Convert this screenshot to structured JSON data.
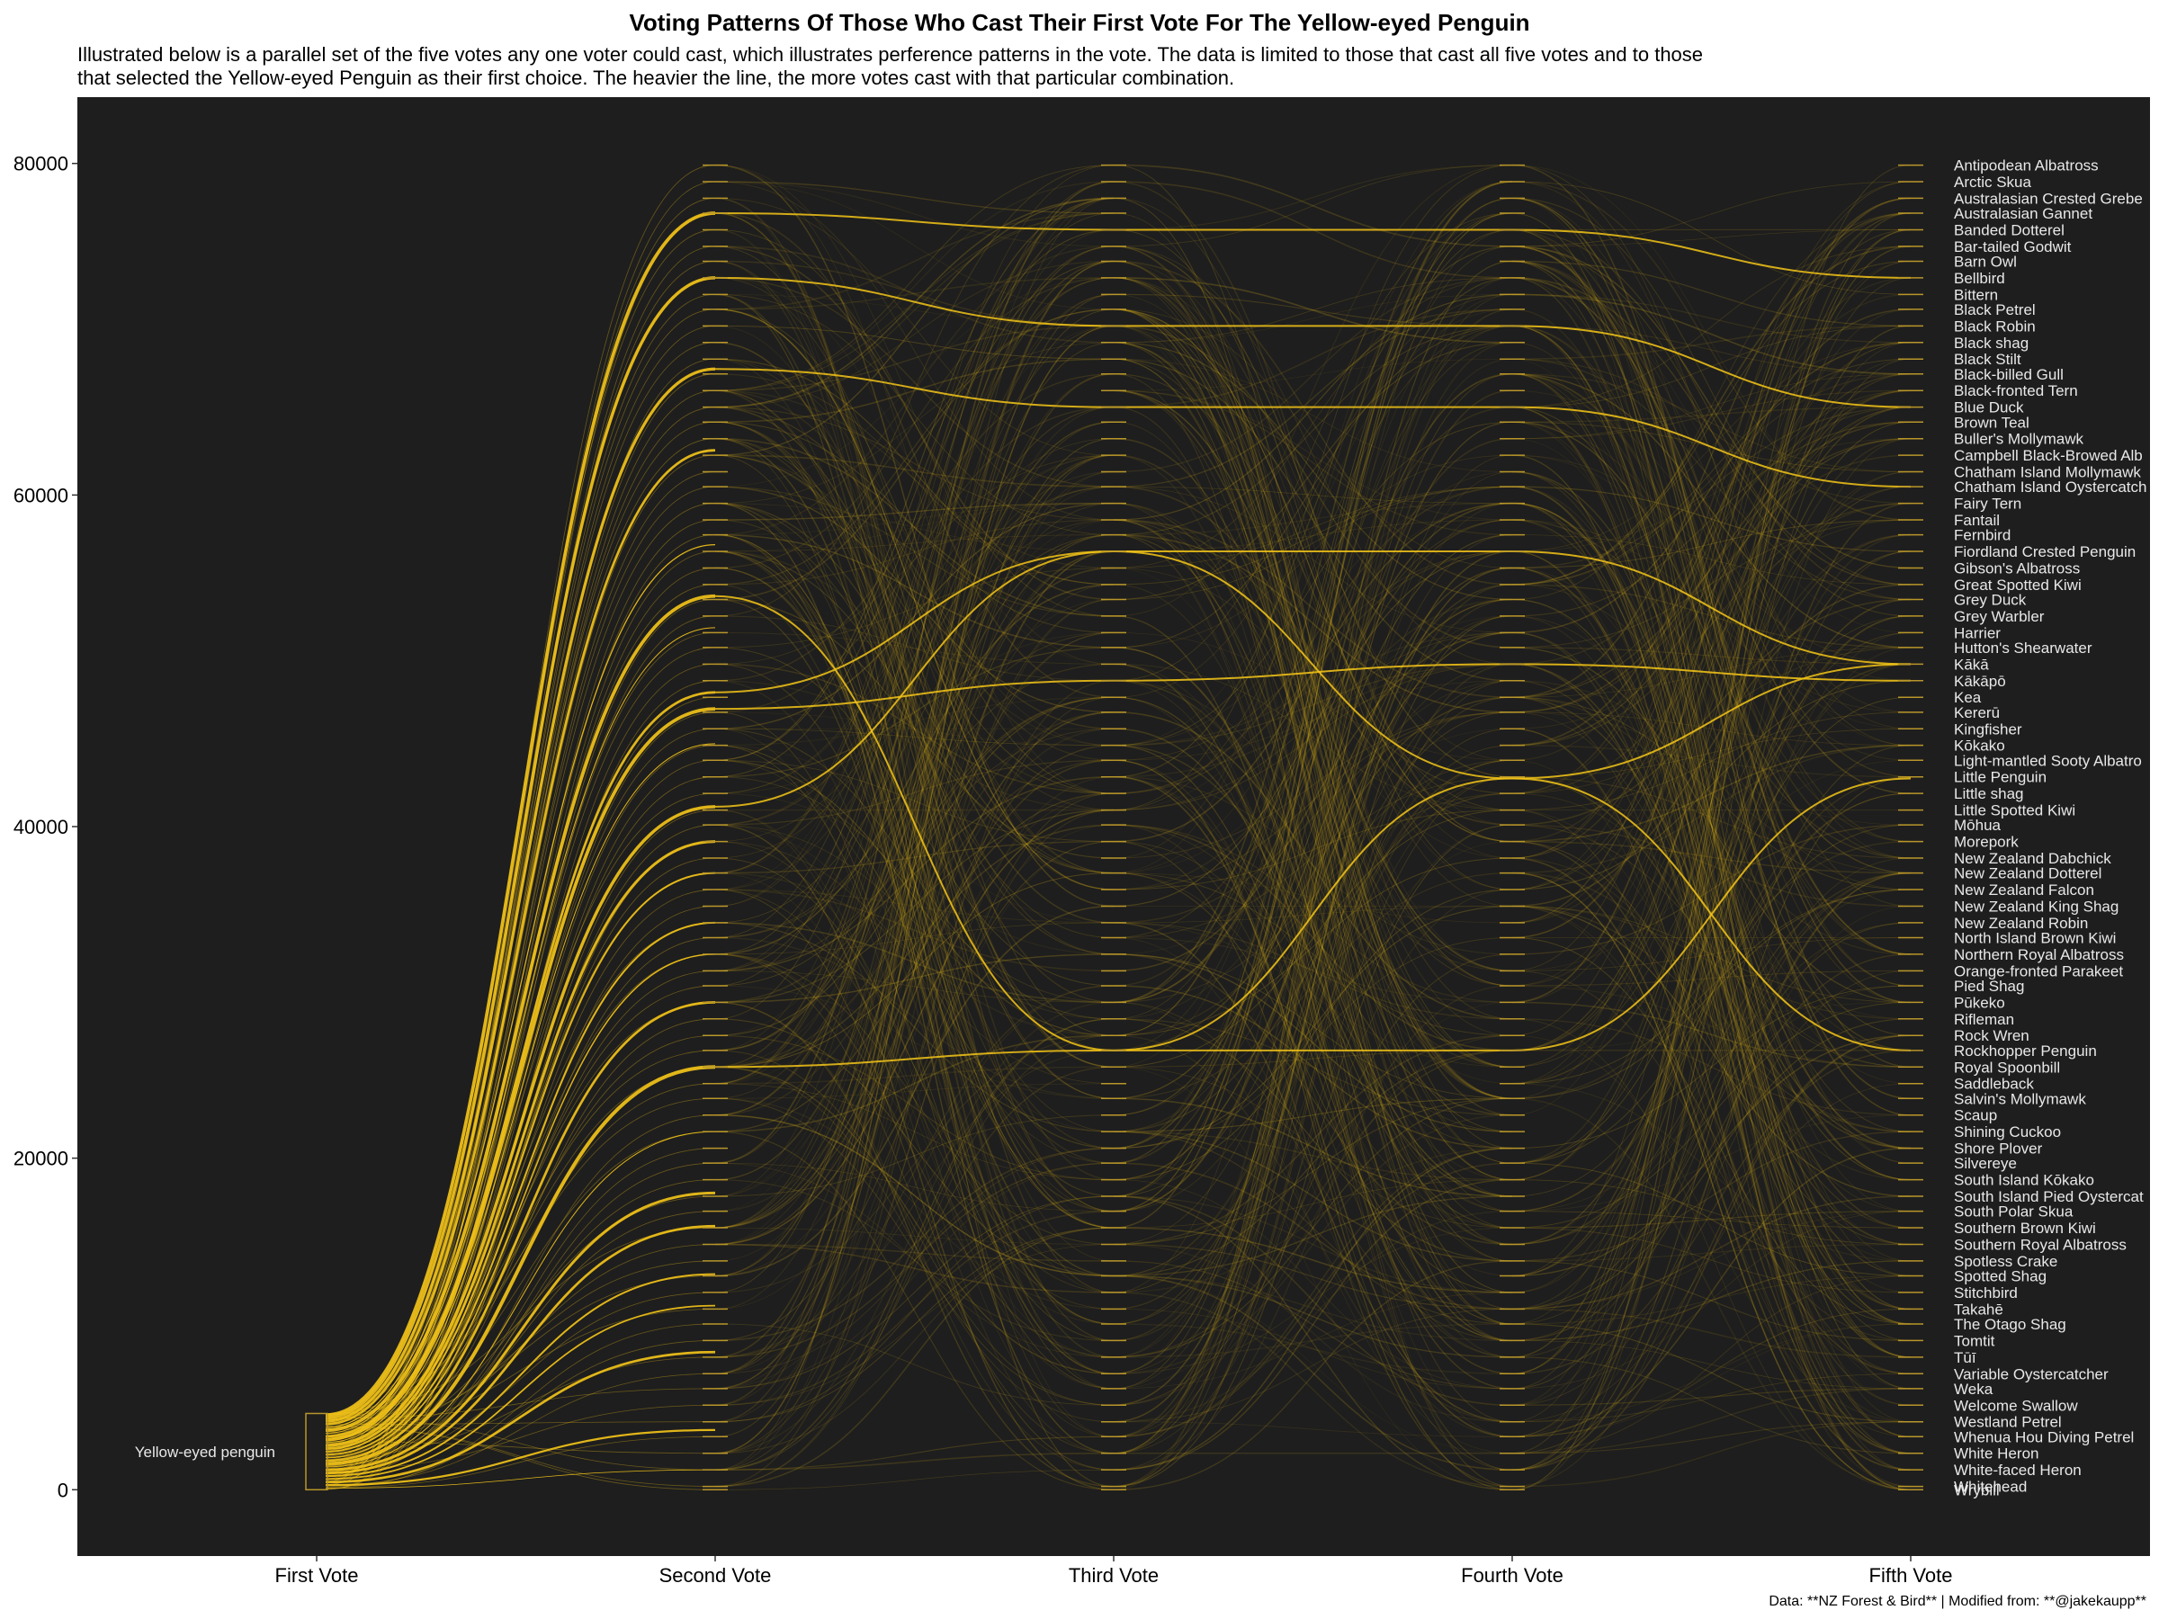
{
  "chart_data": {
    "type": "parallel_sets",
    "title": "Voting Patterns Of Those Who Cast Their First Vote For The Yellow-eyed Penguin",
    "subtitle_lines": [
      "Illustrated below is a parallel set of the five votes any one voter could cast, which illustrates perference patterns in the vote. The data is limited to those that cast all five votes and to those",
      "that selected the Yellow-eyed Penguin as their first choice. The heavier the line, the more votes cast with that particular combination."
    ],
    "caption": "Data: **NZ Forest & Bird** | Modified from: **@jakekaupp**",
    "axes": [
      "First Vote",
      "Second Vote",
      "Third Vote",
      "Fourth Vote",
      "Fifth Vote"
    ],
    "first_vote_label": "Yellow-eyed penguin",
    "y_ticks": [
      0,
      20000,
      40000,
      60000,
      80000
    ],
    "ylim": [
      -4000,
      84000
    ],
    "y_tick_labels": [
      "0",
      "20000",
      "40000",
      "60000",
      "80000"
    ],
    "first_vote_range": [
      0,
      4600
    ],
    "species": [
      "Antipodean Albatross",
      "Arctic Skua",
      "Australasian Crested Grebe",
      "Australasian Gannet",
      "Banded Dotterel",
      "Bar-tailed Godwit",
      "Barn Owl",
      "Bellbird",
      "Bittern",
      "Black Petrel",
      "Black Robin",
      "Black shag",
      "Black Stilt",
      "Black-billed Gull",
      "Black-fronted Tern",
      "Blue Duck",
      "Brown Teal",
      "Buller's Mollymawk",
      "Campbell Black-Browed Alb",
      "Chatham Island Mollymawk",
      "Chatham Island Oystercatch",
      "Fairy Tern",
      "Fantail",
      "Fernbird",
      "Fiordland Crested Penguin",
      "Gibson's Albatross",
      "Great Spotted Kiwi",
      "Grey Duck",
      "Grey Warbler",
      "Harrier",
      "Hutton's Shearwater",
      "Kākā",
      "Kākāpō",
      "Kea",
      "Kererū",
      "Kingfisher",
      "Kōkako",
      "Light-mantled Sooty Albatro",
      "Little Penguin",
      "Little shag",
      "Little Spotted Kiwi",
      "Mōhua",
      "Morepork",
      "New Zealand Dabchick",
      "New Zealand Dotterel",
      "New Zealand Falcon",
      "New Zealand King Shag",
      "New Zealand Robin",
      "North Island Brown Kiwi",
      "Northern Royal Albatross",
      "Orange-fronted Parakeet",
      "Pied Shag",
      "Pūkeko",
      "Rifleman",
      "Rock Wren",
      "Rockhopper Penguin",
      "Royal Spoonbill",
      "Saddleback",
      "Salvin's Mollymawk",
      "Scaup",
      "Shining Cuckoo",
      "Shore Plover",
      "Silvereye",
      "South Island Kōkako",
      "South Island Pied Oystercat",
      "South Polar Skua",
      "Southern Brown Kiwi",
      "Southern Royal Albatross",
      "Spotless Crake",
      "Spotted Shag",
      "Stitchbird",
      "Takahē",
      "The Otago Shag",
      "Tomtit",
      "Tūī",
      "Variable Oystercatcher",
      "Weka",
      "Welcome Swallow",
      "Westland Petrel",
      "Whenua Hou Diving Petrel",
      "White Heron",
      "White-faced Heron",
      "Whitehead",
      "Wrybill"
    ],
    "species_y": [
      79900,
      78900,
      77900,
      77000,
      76000,
      75000,
      74100,
      73100,
      72100,
      71200,
      70200,
      69200,
      68200,
      67300,
      66300,
      65300,
      64400,
      63400,
      62400,
      61400,
      60500,
      59500,
      58500,
      57600,
      56600,
      55600,
      54600,
      53700,
      52700,
      51700,
      50800,
      49800,
      48800,
      47800,
      46900,
      45900,
      44900,
      44000,
      43000,
      42000,
      41000,
      40100,
      39100,
      38100,
      37200,
      36200,
      35200,
      34200,
      33300,
      32300,
      31300,
      30400,
      29400,
      28400,
      27400,
      26500,
      25500,
      24500,
      23600,
      22600,
      21600,
      20600,
      19700,
      18700,
      17700,
      16800,
      15800,
      14800,
      13800,
      12900,
      11900,
      10900,
      10000,
      9000,
      8000,
      7000,
      6100,
      5100,
      4100,
      3200,
      2200,
      1200,
      200,
      0
    ],
    "first_to_second": [
      {
        "to": 77000,
        "votes": 30
      },
      {
        "to": 73100,
        "votes": 28
      },
      {
        "to": 67600,
        "votes": 26
      },
      {
        "to": 62700,
        "votes": 22
      },
      {
        "to": 57000,
        "votes": 10
      },
      {
        "to": 53900,
        "votes": 30
      },
      {
        "to": 52000,
        "votes": 8
      },
      {
        "to": 48100,
        "votes": 22
      },
      {
        "to": 47100,
        "votes": 30
      },
      {
        "to": 45000,
        "votes": 8
      },
      {
        "to": 41200,
        "votes": 28
      },
      {
        "to": 39100,
        "votes": 24
      },
      {
        "to": 37200,
        "votes": 16
      },
      {
        "to": 34200,
        "votes": 16
      },
      {
        "to": 32300,
        "votes": 12
      },
      {
        "to": 29400,
        "votes": 22
      },
      {
        "to": 25500,
        "votes": 32
      },
      {
        "to": 21600,
        "votes": 8
      },
      {
        "to": 17900,
        "votes": 24
      },
      {
        "to": 15900,
        "votes": 22
      },
      {
        "to": 13000,
        "votes": 16
      },
      {
        "to": 11100,
        "votes": 14
      },
      {
        "to": 8300,
        "votes": 22
      },
      {
        "to": 3600,
        "votes": 18
      },
      {
        "to": 1200,
        "votes": 6
      }
    ],
    "highlighted_paths": [
      [
        53900,
        26500,
        26500,
        42900
      ],
      [
        41200,
        56600,
        56600,
        49800
      ],
      [
        47100,
        48800,
        49800,
        48800
      ],
      [
        77000,
        76000,
        76000,
        73100
      ],
      [
        25500,
        26500,
        42900,
        26500
      ],
      [
        67600,
        65300,
        65300,
        60500
      ],
      [
        73100,
        70200,
        70200,
        65300
      ],
      [
        48100,
        56600,
        42900,
        49800
      ]
    ]
  }
}
